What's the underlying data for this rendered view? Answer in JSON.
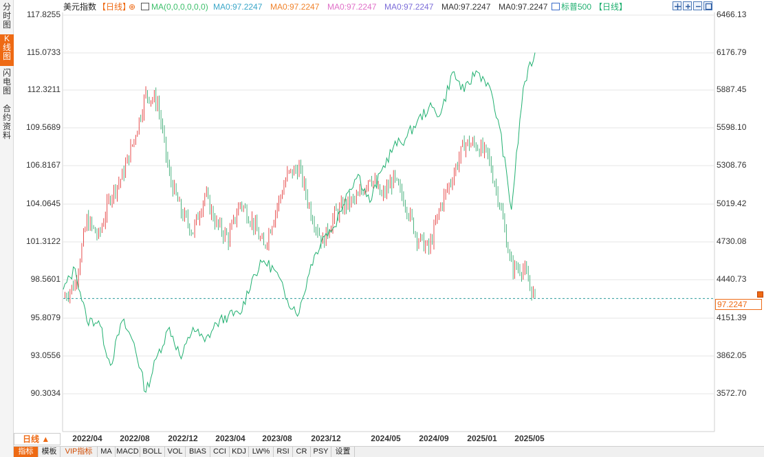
{
  "side_tabs": [
    {
      "label": "分时图",
      "active": false
    },
    {
      "label": "K线图",
      "active": true
    },
    {
      "label": "闪电图",
      "active": false
    },
    {
      "label": "合约资料",
      "active": false
    }
  ],
  "legend": {
    "main_title": "美元指数",
    "main_period": "【日线】",
    "ma_params": "MA(0,0,0,0,0,0)",
    "ma_values": [
      {
        "text": "MA0:97.2247",
        "color": "#3a7fd4"
      },
      {
        "text": "MA0:97.2247",
        "color": "#3cbf6a"
      },
      {
        "text": "MA0:97.2247",
        "color": "#3aa6c8"
      },
      {
        "text": "MA0:97.2247",
        "color": "#f0822a"
      },
      {
        "text": "MA0:97.2247",
        "color": "#e070c8"
      },
      {
        "text": "MA0:97.2247",
        "color": "#7b6cd8"
      }
    ],
    "overlay_title": "标普500",
    "overlay_period": "【日线】"
  },
  "toolbar": [
    "crosshair-icon",
    "zoom-in-icon",
    "zoom-out-icon",
    "fullscreen-icon"
  ],
  "y_axis_left": [
    "117.8255",
    "115.0733",
    "112.3211",
    "109.5689",
    "106.8167",
    "104.0645",
    "101.3122",
    "98.5601",
    "95.8079",
    "93.0556",
    "90.3034"
  ],
  "y_axis_right": [
    "6466.13",
    "6176.79",
    "5887.45",
    "5598.10",
    "5308.76",
    "5019.42",
    "4730.08",
    "4440.73",
    "4151.39",
    "3862.05",
    "3572.70"
  ],
  "x_axis": [
    "2022/04",
    "2022/08",
    "2022/12",
    "2023/04",
    "2023/08",
    "2023/12",
    "2024/05",
    "2024/09",
    "2025/01",
    "2025/05"
  ],
  "current_price": "97.2247",
  "period_button": "日线",
  "bottom_tabs": [
    "指标",
    "模板",
    "VIP指标",
    "MA",
    "MACD",
    "BOLL",
    "VOL",
    "BIAS",
    "CCI",
    "KDJ",
    "LW%",
    "RSI",
    "CR",
    "PSY",
    "设置"
  ],
  "colors": {
    "accent": "#ee6a14",
    "up": "#e02020",
    "down": "#20a060",
    "overlay": "#20b070",
    "grid": "#e6e6e6"
  },
  "chart_data": [
    {
      "type": "candlestick",
      "series_name": "美元指数",
      "axis": "left",
      "ylim": [
        90.3034,
        117.8255
      ],
      "x": [
        "2022/02",
        "2022/03",
        "2022/04",
        "2022/05",
        "2022/06",
        "2022/07",
        "2022/08",
        "2022/09",
        "2022/10",
        "2022/11",
        "2022/12",
        "2023/01",
        "2023/02",
        "2023/03",
        "2023/04",
        "2023/05",
        "2023/06",
        "2023/07",
        "2023/08",
        "2023/09",
        "2023/10",
        "2023/11",
        "2023/12",
        "2024/01",
        "2024/02",
        "2024/03",
        "2024/04",
        "2024/05",
        "2024/06",
        "2024/07",
        "2024/08",
        "2024/09",
        "2024/10",
        "2024/11",
        "2024/12",
        "2025/01",
        "2025/02",
        "2025/03",
        "2025/04",
        "2025/05",
        "2025/06"
      ],
      "close": [
        97.3,
        98.3,
        102.9,
        101.7,
        104.7,
        106.1,
        108.8,
        112.1,
        111.5,
        106.1,
        103.5,
        102.1,
        104.8,
        102.6,
        101.6,
        104.2,
        102.9,
        100.9,
        103.6,
        106.2,
        106.7,
        103.5,
        101.3,
        103.3,
        104.1,
        104.5,
        106.2,
        104.6,
        105.9,
        104.2,
        101.7,
        100.8,
        104.0,
        106.1,
        108.5,
        108.4,
        107.6,
        104.2,
        99.5,
        99.4,
        97.2
      ]
    },
    {
      "type": "line",
      "series_name": "标普500",
      "axis": "right",
      "ylim": [
        3572.7,
        6466.13
      ],
      "x": [
        "2022/02",
        "2022/03",
        "2022/04",
        "2022/05",
        "2022/06",
        "2022/07",
        "2022/08",
        "2022/09",
        "2022/10",
        "2022/11",
        "2022/12",
        "2023/01",
        "2023/02",
        "2023/03",
        "2023/04",
        "2023/05",
        "2023/06",
        "2023/07",
        "2023/08",
        "2023/09",
        "2023/10",
        "2023/11",
        "2023/12",
        "2024/01",
        "2024/02",
        "2024/03",
        "2024/04",
        "2024/05",
        "2024/06",
        "2024/07",
        "2024/08",
        "2024/09",
        "2024/10",
        "2024/11",
        "2024/12",
        "2025/01",
        "2025/02",
        "2025/03",
        "2025/04",
        "2025/05",
        "2025/06"
      ],
      "values": [
        4370,
        4530,
        4130,
        4130,
        3790,
        4130,
        3960,
        3585,
        3870,
        4080,
        3840,
        4080,
        3970,
        4110,
        4170,
        4180,
        4450,
        4590,
        4510,
        4290,
        4190,
        4560,
        4770,
        4850,
        5100,
        5250,
        5035,
        5280,
        5460,
        5520,
        5650,
        5760,
        5710,
        6030,
        5880,
        6040,
        5950,
        5610,
        4980,
        5910,
        6180
      ]
    }
  ]
}
